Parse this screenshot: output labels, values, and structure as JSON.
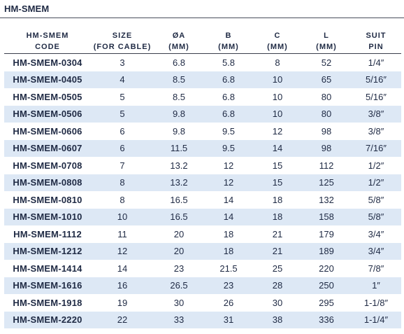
{
  "title": "HM-SMEM",
  "headers": [
    {
      "line1": "HM-SMEM",
      "line2": "CODE"
    },
    {
      "line1": "SIZE",
      "line2": "(FOR CABLE)"
    },
    {
      "line1": "ØA",
      "line2": "(MM)"
    },
    {
      "line1": "B",
      "line2": "(MM)"
    },
    {
      "line1": "C",
      "line2": "(MM)"
    },
    {
      "line1": "L",
      "line2": "(MM)"
    },
    {
      "line1": "SUIT",
      "line2": "PIN"
    }
  ],
  "rows": [
    {
      "code": "HM-SMEM-0304",
      "size": "3",
      "a": "6.8",
      "b": "5.8",
      "c": "8",
      "l": "52",
      "pin": "1/4″"
    },
    {
      "code": "HM-SMEM-0405",
      "size": "4",
      "a": "8.5",
      "b": "6.8",
      "c": "10",
      "l": "65",
      "pin": "5/16″"
    },
    {
      "code": "HM-SMEM-0505",
      "size": "5",
      "a": "8.5",
      "b": "6.8",
      "c": "10",
      "l": "80",
      "pin": "5/16″"
    },
    {
      "code": "HM-SMEM-0506",
      "size": "5",
      "a": "9.8",
      "b": "6.8",
      "c": "10",
      "l": "80",
      "pin": "3/8″"
    },
    {
      "code": "HM-SMEM-0606",
      "size": "6",
      "a": "9.8",
      "b": "9.5",
      "c": "12",
      "l": "98",
      "pin": "3/8″"
    },
    {
      "code": "HM-SMEM-0607",
      "size": "6",
      "a": "11.5",
      "b": "9.5",
      "c": "14",
      "l": "98",
      "pin": "7/16″"
    },
    {
      "code": "HM-SMEM-0708",
      "size": "7",
      "a": "13.2",
      "b": "12",
      "c": "15",
      "l": "112",
      "pin": "1/2″"
    },
    {
      "code": "HM-SMEM-0808",
      "size": "8",
      "a": "13.2",
      "b": "12",
      "c": "15",
      "l": "125",
      "pin": "1/2″"
    },
    {
      "code": "HM-SMEM-0810",
      "size": "8",
      "a": "16.5",
      "b": "14",
      "c": "18",
      "l": "132",
      "pin": "5/8″"
    },
    {
      "code": "HM-SMEM-1010",
      "size": "10",
      "a": "16.5",
      "b": "14",
      "c": "18",
      "l": "158",
      "pin": "5/8″"
    },
    {
      "code": "HM-SMEM-1112",
      "size": "11",
      "a": "20",
      "b": "18",
      "c": "21",
      "l": "179",
      "pin": "3/4″"
    },
    {
      "code": "HM-SMEM-1212",
      "size": "12",
      "a": "20",
      "b": "18",
      "c": "21",
      "l": "189",
      "pin": "3/4″"
    },
    {
      "code": "HM-SMEM-1414",
      "size": "14",
      "a": "23",
      "b": "21.5",
      "c": "25",
      "l": "220",
      "pin": "7/8″"
    },
    {
      "code": "HM-SMEM-1616",
      "size": "16",
      "a": "26.5",
      "b": "23",
      "c": "28",
      "l": "250",
      "pin": "1″"
    },
    {
      "code": "HM-SMEM-1918",
      "size": "19",
      "a": "30",
      "b": "26",
      "c": "30",
      "l": "295",
      "pin": "1-1/8″"
    },
    {
      "code": "HM-SMEM-2220",
      "size": "22",
      "a": "33",
      "b": "31",
      "c": "38",
      "l": "336",
      "pin": "1-1/4″"
    }
  ],
  "colors": {
    "text": "#1f2a44",
    "row_shade": "#dde8f5",
    "rule": "#3a3f4c"
  }
}
